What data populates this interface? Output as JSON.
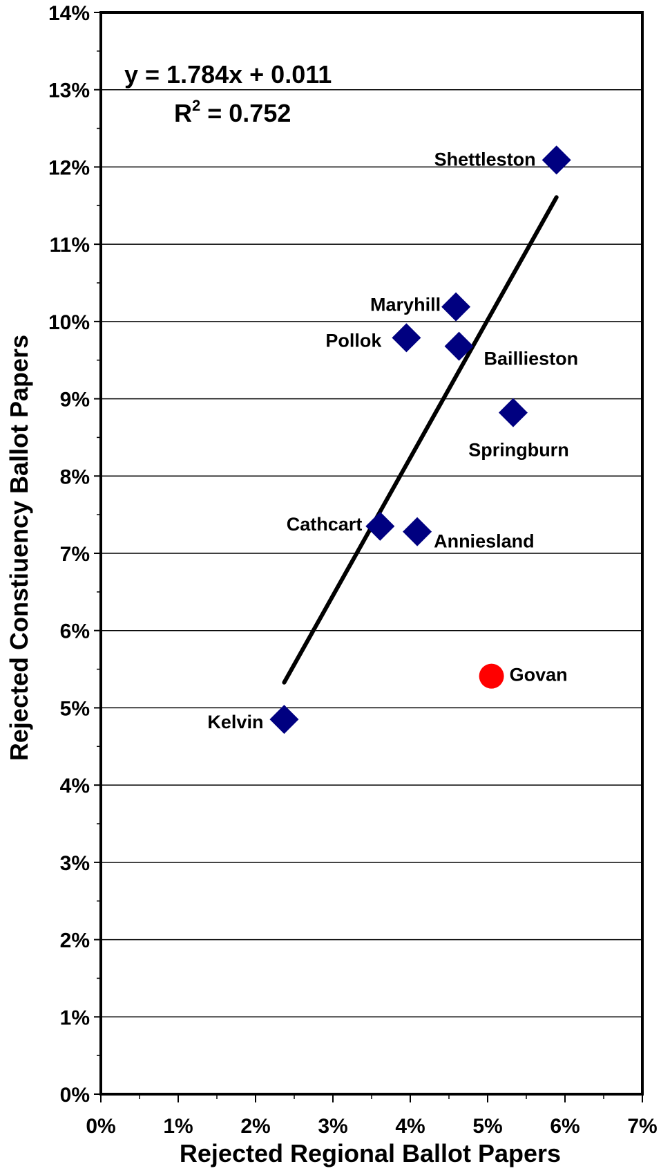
{
  "chart_data": {
    "type": "scatter",
    "xlabel": "Rejected Regional Ballot Papers",
    "ylabel": "Rejected Constiuency Ballot Papers",
    "xlim": [
      0,
      0.07
    ],
    "ylim": [
      0,
      0.14
    ],
    "x_ticks": [
      "0%",
      "1%",
      "2%",
      "3%",
      "4%",
      "5%",
      "6%",
      "7%"
    ],
    "y_ticks": [
      "0%",
      "1%",
      "2%",
      "3%",
      "4%",
      "5%",
      "6%",
      "7%",
      "8%",
      "9%",
      "10%",
      "11%",
      "12%",
      "13%",
      "14%"
    ],
    "grid": "horizontal",
    "series": [
      {
        "marker": "diamond",
        "color": "#000080",
        "points": [
          {
            "label": "Shettleston",
            "x": 0.0589,
            "y": 0.1209
          },
          {
            "label": "Maryhill",
            "x": 0.0459,
            "y": 0.1019
          },
          {
            "label": "Pollok",
            "x": 0.0395,
            "y": 0.0979
          },
          {
            "label": "Baillieston",
            "x": 0.0463,
            "y": 0.0968
          },
          {
            "label": "Springburn",
            "x": 0.0533,
            "y": 0.0882
          },
          {
            "label": "Cathcart",
            "x": 0.0361,
            "y": 0.0735
          },
          {
            "label": "Anniesland",
            "x": 0.0409,
            "y": 0.0728
          },
          {
            "label": "Kelvin",
            "x": 0.0237,
            "y": 0.0485
          }
        ]
      },
      {
        "marker": "circle",
        "color": "#ff0000",
        "points": [
          {
            "label": "Govan",
            "x": 0.0505,
            "y": 0.0541
          }
        ]
      }
    ],
    "trendline": {
      "slope": 1.784,
      "intercept": 0.011,
      "x_range": [
        0.0237,
        0.0589
      ],
      "color": "#000000"
    },
    "annotations": {
      "equation": "y = 1.784x + 0.011",
      "r2_prefix": "R",
      "r2_superscript": "2",
      "r2_suffix": " = 0.752"
    }
  }
}
